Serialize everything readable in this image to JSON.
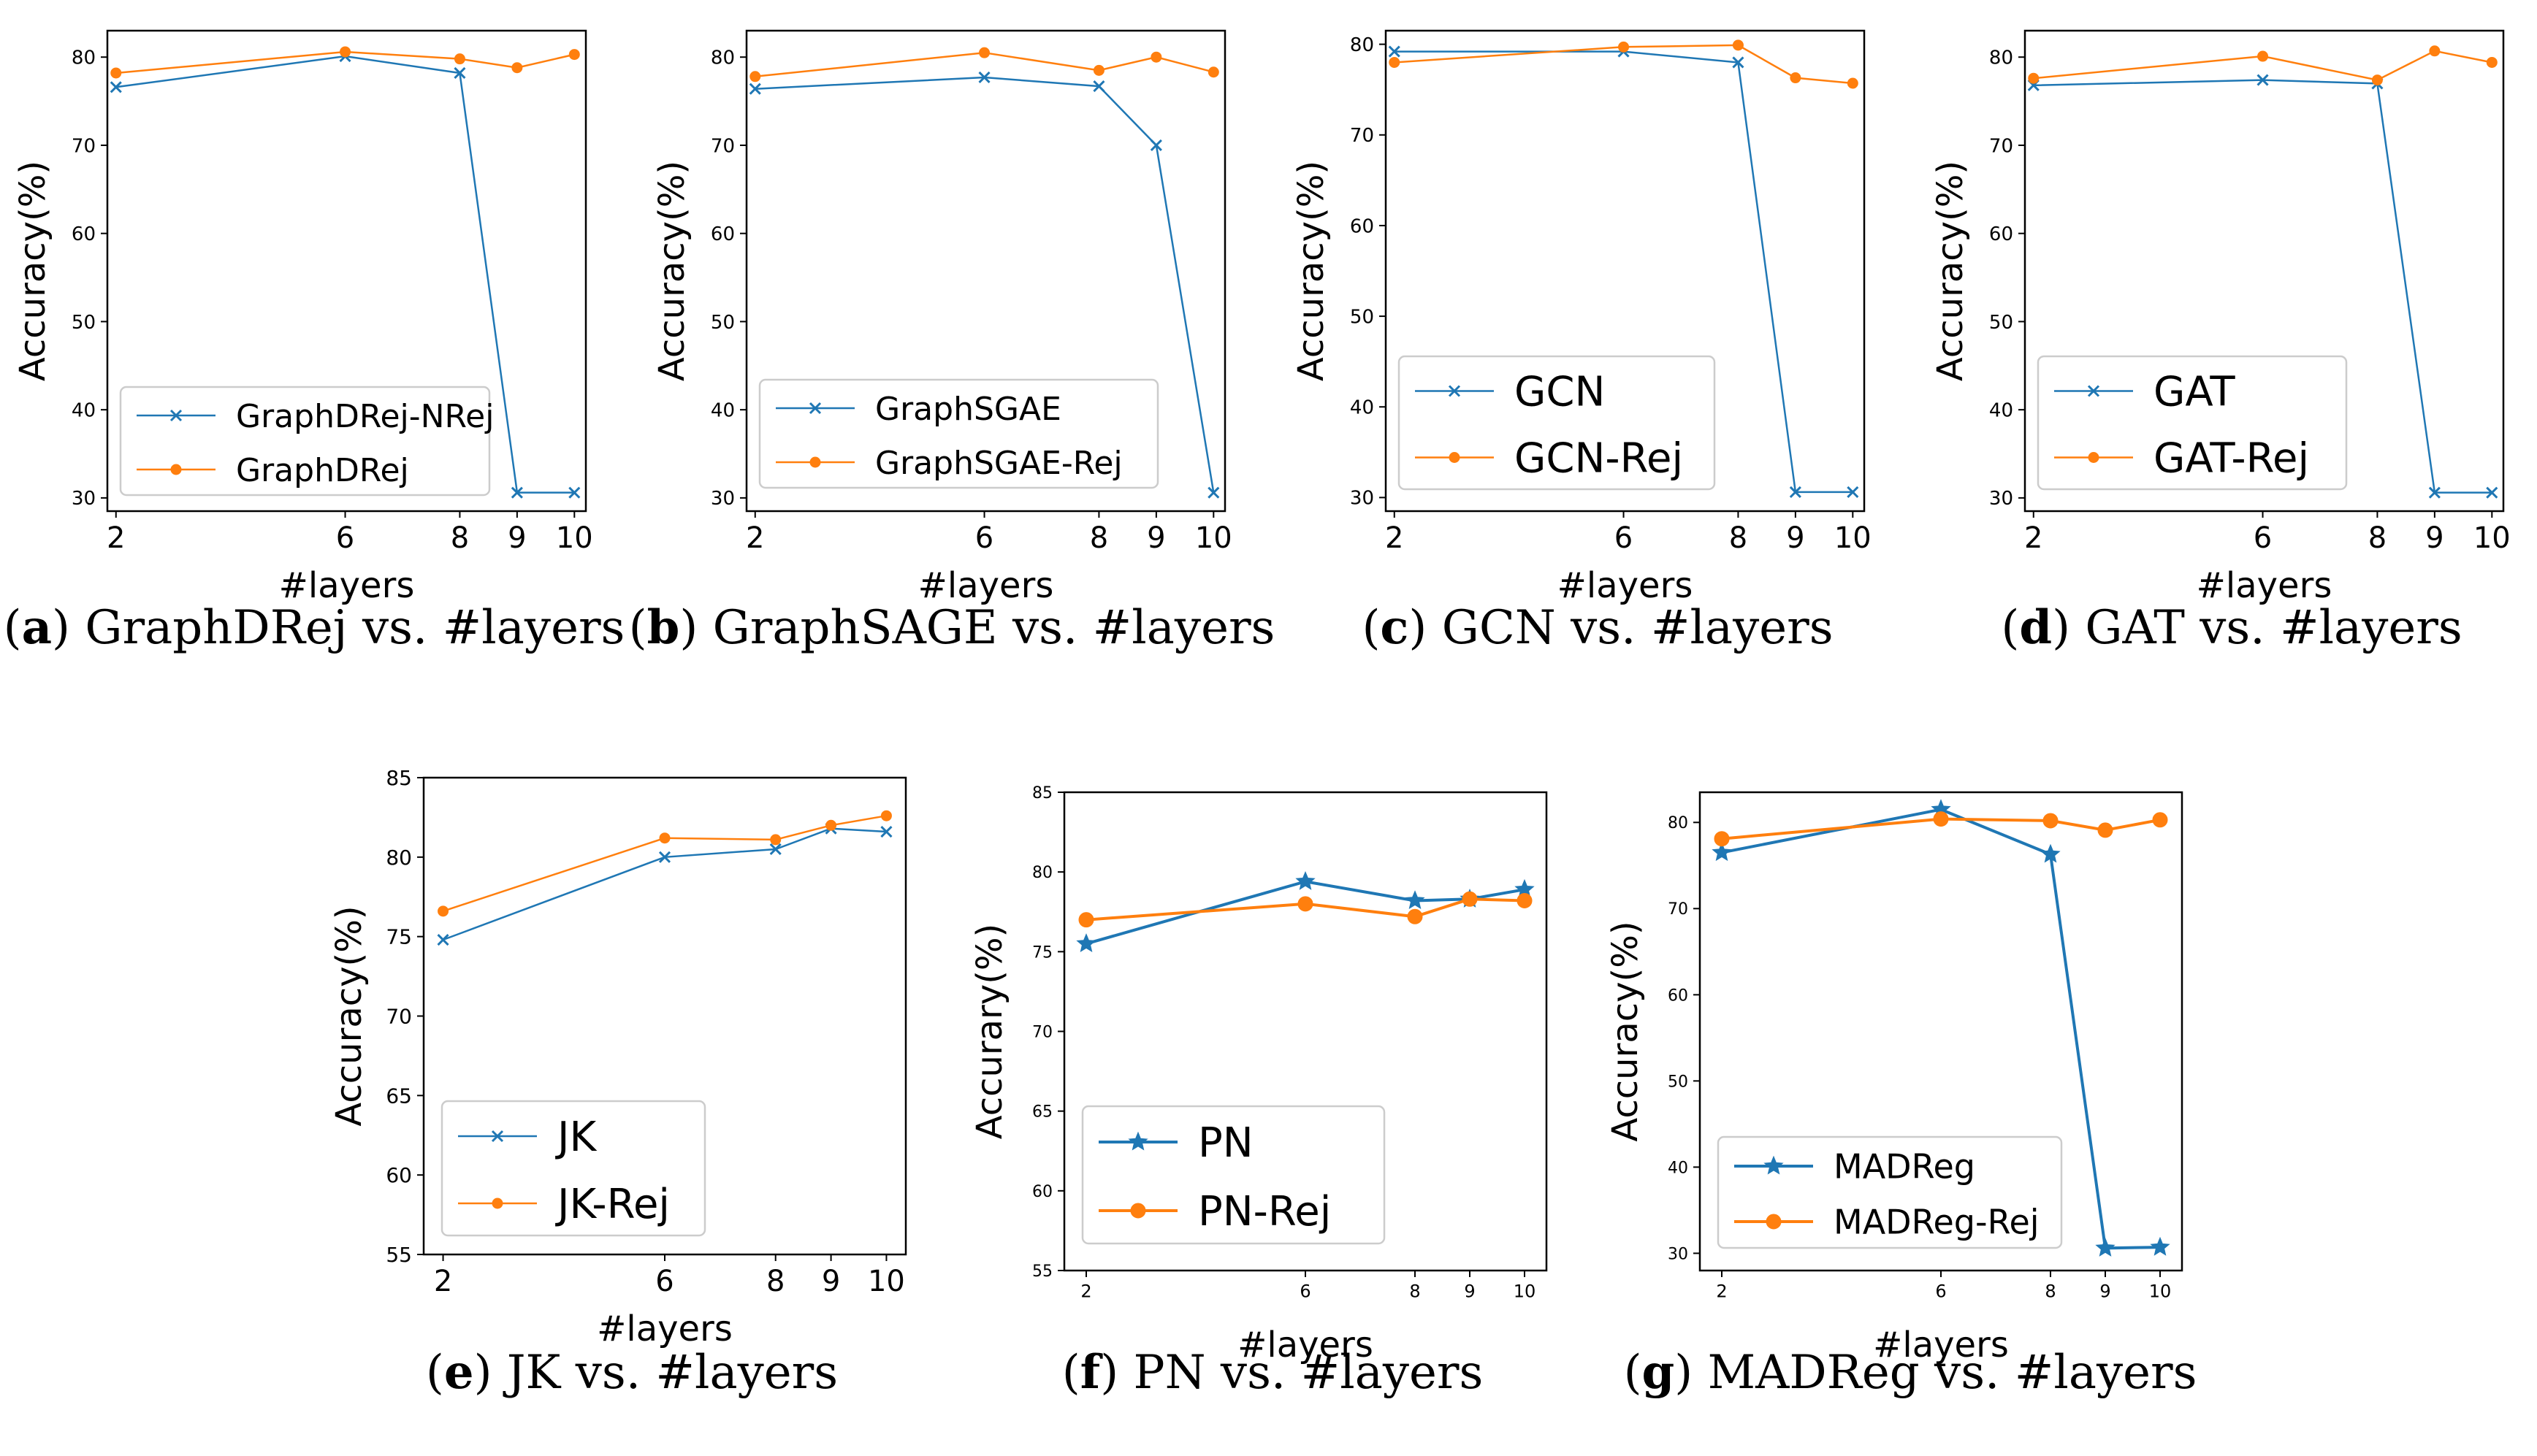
{
  "colors": {
    "blue": "#1f77b4",
    "orange": "#ff7f0e"
  },
  "chart_data": [
    {
      "id": "a",
      "type": "line",
      "caption_letter": "a",
      "caption_text": "GraphDRej vs. #layers",
      "xlabel": "#layers",
      "ylabel": "Accuracy(%)",
      "x": [
        2,
        6,
        8,
        9,
        10
      ],
      "xticks": [
        "2",
        "6",
        "8",
        "9",
        "10"
      ],
      "xlim": [
        1.85,
        10.2
      ],
      "ylim": [
        28.5,
        83
      ],
      "yticks": [
        "30",
        "40",
        "50",
        "60",
        "70",
        "80"
      ],
      "legend_position": "lower-left",
      "series": [
        {
          "name": "GraphDRej-NRej",
          "marker": "x",
          "color": "blue",
          "values": [
            76.6,
            80.1,
            78.2,
            30.6,
            30.6
          ]
        },
        {
          "name": "GraphDRej",
          "marker": "dot",
          "color": "orange",
          "values": [
            78.2,
            80.6,
            79.8,
            78.8,
            80.3
          ]
        }
      ]
    },
    {
      "id": "b",
      "type": "line",
      "caption_letter": "b",
      "caption_text": "GraphSAGE vs. #layers",
      "xlabel": "#layers",
      "ylabel": "Accuracy(%)",
      "x": [
        2,
        6,
        8,
        9,
        10
      ],
      "xticks": [
        "2",
        "6",
        "8",
        "9",
        "10"
      ],
      "xlim": [
        1.85,
        10.2
      ],
      "ylim": [
        28.5,
        83
      ],
      "yticks": [
        "30",
        "40",
        "50",
        "60",
        "70",
        "80"
      ],
      "legend_position": "lower-left",
      "series": [
        {
          "name": "GraphSGAE",
          "marker": "x",
          "color": "blue",
          "values": [
            76.4,
            77.7,
            76.7,
            70.0,
            30.6
          ]
        },
        {
          "name": "GraphSGAE-Rej",
          "marker": "dot",
          "color": "orange",
          "values": [
            77.8,
            80.5,
            78.5,
            80.0,
            78.3
          ]
        }
      ]
    },
    {
      "id": "c",
      "type": "line",
      "caption_letter": "c",
      "caption_text": "GCN vs. #layers",
      "xlabel": "#layers",
      "ylabel": "Accuracy(%)",
      "x": [
        2,
        6,
        8,
        9,
        10
      ],
      "xticks": [
        "2",
        "6",
        "8",
        "9",
        "10"
      ],
      "xlim": [
        1.85,
        10.2
      ],
      "ylim": [
        28.5,
        81.5
      ],
      "yticks": [
        "30",
        "40",
        "50",
        "60",
        "70",
        "80"
      ],
      "legend_position": "lower-left",
      "series": [
        {
          "name": "GCN",
          "marker": "x",
          "color": "blue",
          "values": [
            79.2,
            79.2,
            78.0,
            30.6,
            30.6
          ]
        },
        {
          "name": "GCN-Rej",
          "marker": "dot",
          "color": "orange",
          "values": [
            78.0,
            79.7,
            79.9,
            76.3,
            75.7
          ]
        }
      ]
    },
    {
      "id": "d",
      "type": "line",
      "caption_letter": "d",
      "caption_text": "GAT vs. #layers",
      "xlabel": "#layers",
      "ylabel": "Accuracy(%)",
      "x": [
        2,
        6,
        8,
        9,
        10
      ],
      "xticks": [
        "2",
        "6",
        "8",
        "9",
        "10"
      ],
      "xlim": [
        1.85,
        10.2
      ],
      "ylim": [
        28.5,
        83
      ],
      "yticks": [
        "30",
        "40",
        "50",
        "60",
        "70",
        "80"
      ],
      "legend_position": "lower-left",
      "series": [
        {
          "name": "GAT",
          "marker": "x",
          "color": "blue",
          "values": [
            76.8,
            77.4,
            77.0,
            30.6,
            30.6
          ]
        },
        {
          "name": "GAT-Rej",
          "marker": "dot",
          "color": "orange",
          "values": [
            77.6,
            80.1,
            77.4,
            80.7,
            79.4
          ]
        }
      ]
    },
    {
      "id": "e",
      "type": "line",
      "caption_letter": "e",
      "caption_text": "JK vs. #layers",
      "xlabel": "#layers",
      "ylabel": "Accuracy(%)",
      "x": [
        2,
        6,
        8,
        9,
        10
      ],
      "xticks": [
        "2",
        "6",
        "8",
        "9",
        "10"
      ],
      "xlim": [
        1.65,
        10.35
      ],
      "ylim": [
        55,
        85
      ],
      "yticks": [
        "55",
        "60",
        "65",
        "70",
        "75",
        "80",
        "85"
      ],
      "legend_position": "lower-left",
      "series": [
        {
          "name": "JK",
          "marker": "x",
          "color": "blue",
          "values": [
            74.8,
            80.0,
            80.5,
            81.8,
            81.6
          ]
        },
        {
          "name": "JK-Rej",
          "marker": "dot",
          "color": "orange",
          "values": [
            76.6,
            81.2,
            81.1,
            82.0,
            82.6
          ]
        }
      ]
    },
    {
      "id": "f",
      "type": "line",
      "caption_letter": "f",
      "caption_text": "PN vs. #layers",
      "xlabel": "#layers",
      "ylabel": "Accurary(%)",
      "x": [
        2,
        6,
        8,
        9,
        10
      ],
      "xticks": [
        "2",
        "6",
        "8",
        "9",
        "10"
      ],
      "xlim": [
        1.6,
        10.4
      ],
      "ylim": [
        55,
        85
      ],
      "yticks": [
        "55",
        "60",
        "65",
        "70",
        "75",
        "80",
        "85"
      ],
      "legend_position": "lower-left",
      "series": [
        {
          "name": "PN",
          "marker": "star",
          "color": "blue",
          "values": [
            75.5,
            79.4,
            78.2,
            78.3,
            78.9
          ]
        },
        {
          "name": "PN-Rej",
          "marker": "dot",
          "color": "orange",
          "values": [
            77.0,
            78.0,
            77.2,
            78.3,
            78.2
          ]
        }
      ]
    },
    {
      "id": "g",
      "type": "line",
      "caption_letter": "g",
      "caption_text": "MADReg vs. #layers",
      "xlabel": "#layers",
      "ylabel": "Accuracy(%)",
      "x": [
        2,
        6,
        8,
        9,
        10
      ],
      "xticks": [
        "2",
        "6",
        "8",
        "9",
        "10"
      ],
      "xlim": [
        1.6,
        10.4
      ],
      "ylim": [
        28,
        83.5
      ],
      "yticks": [
        "30",
        "40",
        "50",
        "60",
        "70",
        "80"
      ],
      "legend_position": "lower-left",
      "series": [
        {
          "name": "MADReg",
          "marker": "star",
          "color": "blue",
          "values": [
            76.5,
            81.5,
            76.3,
            30.6,
            30.7
          ]
        },
        {
          "name": "MADReg-Rej",
          "marker": "dot",
          "color": "orange",
          "values": [
            78.1,
            80.4,
            80.2,
            79.1,
            80.3
          ]
        }
      ]
    }
  ]
}
